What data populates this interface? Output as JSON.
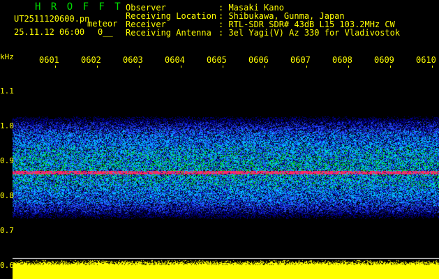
{
  "header": {
    "logo": "H R O F F T",
    "filename": "UT2511120600.pn",
    "mode": "meteor",
    "datetime": "25.11.12 06:00",
    "count": "0__"
  },
  "info": {
    "labels": [
      "Observer",
      "Receiving Location",
      "Receiver",
      "Receiving Antenna"
    ],
    "values": [
      ": Masaki Kano",
      ": Shibukawa, Gunma, Japan",
      ": RTL-SDR SDR# 43dB L15 103.2MHz CW",
      ": 3el Yagi(V) Az 330 for Vladivostok"
    ]
  },
  "axis": {
    "y_unit": "kHz",
    "y_ticks": [
      "1.1",
      "1.0",
      "0.9",
      "0.8",
      "0.7",
      "0.6"
    ],
    "x_ticks": [
      "0601",
      "0602",
      "0603",
      "0604",
      "0605",
      "0606",
      "0607",
      "0608",
      "0609",
      "0610"
    ]
  },
  "colors": {
    "text": "#ffff00",
    "logo": "#00e000",
    "signal": "#ff3060"
  }
}
